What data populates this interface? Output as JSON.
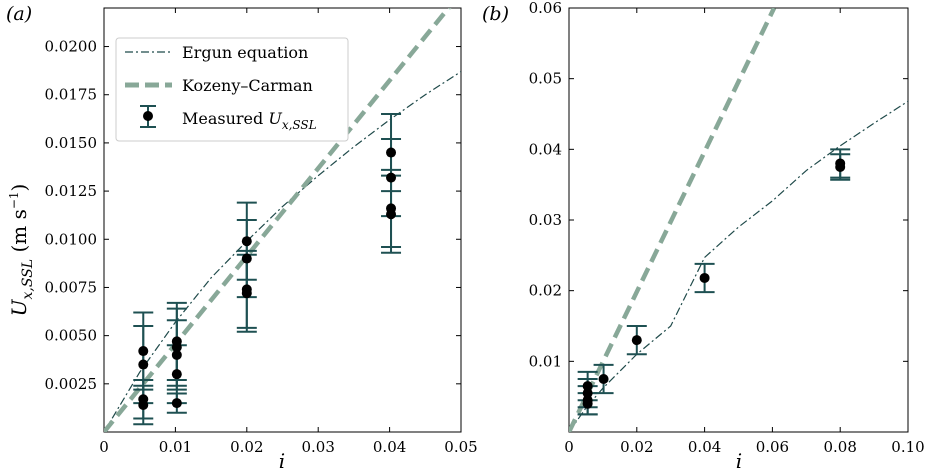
{
  "colors": {
    "ergun": "#1f4a4a",
    "kozeny": "#88a898",
    "measured": "#1e5052",
    "marker": "#000000"
  },
  "legend": {
    "ergun": "Ergun equation",
    "kozeny": "Kozeny–Carman",
    "measured_prefix": "Measured ",
    "measured_var": "U",
    "measured_sub": "x,SSL"
  },
  "chart_data": [
    {
      "panel": "(a)",
      "type": "scatter",
      "xlabel": "i",
      "ylabel_var": "U",
      "ylabel_sub": "x,SSL",
      "ylabel_unit": " (m s",
      "ylabel_exp": "−1",
      "ylabel_close": ")",
      "xlim": [
        0,
        0.05
      ],
      "ylim": [
        0,
        0.022
      ],
      "x_ticks": [
        0,
        0.01,
        0.02,
        0.03,
        0.04,
        0.05
      ],
      "x_tick_labels": [
        "0",
        "0.01",
        "0.02",
        "0.03",
        "0.04",
        "0.05"
      ],
      "y_ticks": [
        0.0025,
        0.005,
        0.0075,
        0.01,
        0.0125,
        0.015,
        0.0175,
        0.02
      ],
      "y_tick_labels": [
        "0.0025",
        "0.0050",
        "0.0075",
        "0.0100",
        "0.0125",
        "0.0150",
        "0.0175",
        "0.0200"
      ],
      "legend_position": "upper-left",
      "series": [
        {
          "name": "Ergun equation",
          "kind": "line",
          "style": "dashdot",
          "x": [
            0,
            0.005,
            0.01,
            0.015,
            0.02,
            0.025,
            0.03,
            0.035,
            0.04,
            0.045,
            0.05
          ],
          "y": [
            0,
            0.0031,
            0.0057,
            0.008,
            0.0099,
            0.0117,
            0.0133,
            0.0148,
            0.0162,
            0.0175,
            0.0187
          ]
        },
        {
          "name": "Kozeny–Carman",
          "kind": "line",
          "style": "dashed",
          "x": [
            0,
            0.05
          ],
          "y": [
            0,
            0.0228
          ]
        },
        {
          "name": "Measured U_x,SSL",
          "kind": "errorbar",
          "points": [
            {
              "x": 0.0055,
              "y": 0.0042,
              "err": 0.002
            },
            {
              "x": 0.0055,
              "y": 0.0035,
              "err": 0.002
            },
            {
              "x": 0.0055,
              "y": 0.0017,
              "err": 0.001
            },
            {
              "x": 0.0055,
              "y": 0.0014,
              "err": 0.001
            },
            {
              "x": 0.0102,
              "y": 0.0047,
              "err": 0.002
            },
            {
              "x": 0.0102,
              "y": 0.0044,
              "err": 0.002
            },
            {
              "x": 0.0102,
              "y": 0.004,
              "err": 0.0018
            },
            {
              "x": 0.0102,
              "y": 0.003,
              "err": 0.0015
            },
            {
              "x": 0.0102,
              "y": 0.0015,
              "err": 0.0005
            },
            {
              "x": 0.02,
              "y": 0.0099,
              "err": 0.002
            },
            {
              "x": 0.02,
              "y": 0.009,
              "err": 0.002
            },
            {
              "x": 0.02,
              "y": 0.0074,
              "err": 0.002
            },
            {
              "x": 0.02,
              "y": 0.0072,
              "err": 0.002
            },
            {
              "x": 0.0402,
              "y": 0.0145,
              "err": 0.002
            },
            {
              "x": 0.0402,
              "y": 0.0132,
              "err": 0.002
            },
            {
              "x": 0.0402,
              "y": 0.0116,
              "err": 0.002
            },
            {
              "x": 0.0402,
              "y": 0.0113,
              "err": 0.002
            }
          ]
        }
      ]
    },
    {
      "panel": "(b)",
      "type": "scatter",
      "xlabel": "i",
      "xlim": [
        0,
        0.1
      ],
      "ylim": [
        0,
        0.06
      ],
      "x_ticks": [
        0,
        0.02,
        0.04,
        0.06,
        0.08,
        0.1
      ],
      "x_tick_labels": [
        "0",
        "0.02",
        "0.04",
        "0.06",
        "0.08",
        "0.10"
      ],
      "y_ticks": [
        0.01,
        0.02,
        0.03,
        0.04,
        0.05,
        0.06
      ],
      "y_tick_labels": [
        "0.01",
        "0.02",
        "0.03",
        "0.04",
        "0.05",
        "0.06"
      ],
      "series": [
        {
          "name": "Ergun equation",
          "kind": "line",
          "style": "dashdot",
          "x": [
            0,
            0.005,
            0.01,
            0.02,
            0.03,
            0.04,
            0.05,
            0.06,
            0.07,
            0.08,
            0.09,
            0.1
          ],
          "y": [
            0,
            0.0034,
            0.0062,
            0.011,
            0.015,
            0.0247,
            0.029,
            0.0327,
            0.037,
            0.0405,
            0.0437,
            0.0468
          ]
        },
        {
          "name": "Kozeny–Carman",
          "kind": "line",
          "style": "dashed",
          "x": [
            0,
            0.0605
          ],
          "y": [
            0,
            0.06
          ]
        },
        {
          "name": "Measured U_x,SSL",
          "kind": "errorbar",
          "points": [
            {
              "x": 0.0055,
              "y": 0.0065,
              "err": 0.002
            },
            {
              "x": 0.0055,
              "y": 0.0055,
              "err": 0.002
            },
            {
              "x": 0.0055,
              "y": 0.0045,
              "err": 0.002
            },
            {
              "x": 0.0055,
              "y": 0.004,
              "err": 0.0015
            },
            {
              "x": 0.0102,
              "y": 0.0075,
              "err": 0.002
            },
            {
              "x": 0.02,
              "y": 0.013,
              "err": 0.002
            },
            {
              "x": 0.04,
              "y": 0.0218,
              "err": 0.002
            },
            {
              "x": 0.08,
              "y": 0.038,
              "err": 0.002
            },
            {
              "x": 0.08,
              "y": 0.0375,
              "err": 0.0018
            }
          ]
        }
      ]
    }
  ]
}
